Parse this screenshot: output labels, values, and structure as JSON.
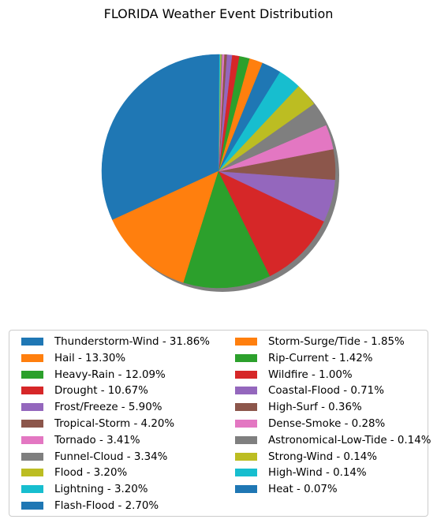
{
  "chart_data": {
    "type": "pie",
    "title": "FLORIDA Weather Event Distribution",
    "shadow": true,
    "legend_position": "bottom",
    "legend_columns": 2,
    "slices": [
      {
        "label": "Thunderstorm-Wind - 31.86%",
        "value": 31.86,
        "color": "#1f77b4"
      },
      {
        "label": "Hail - 13.30%",
        "value": 13.3,
        "color": "#ff7f0e"
      },
      {
        "label": "Heavy-Rain - 12.09%",
        "value": 12.09,
        "color": "#2ca02c"
      },
      {
        "label": "Drought - 10.67%",
        "value": 10.67,
        "color": "#d62728"
      },
      {
        "label": "Frost/Freeze - 5.90%",
        "value": 5.9,
        "color": "#9467bd"
      },
      {
        "label": "Tropical-Storm - 4.20%",
        "value": 4.2,
        "color": "#8c564b"
      },
      {
        "label": "Tornado - 3.41%",
        "value": 3.41,
        "color": "#e377c2"
      },
      {
        "label": "Funnel-Cloud - 3.34%",
        "value": 3.34,
        "color": "#7f7f7f"
      },
      {
        "label": "Flood - 3.20%",
        "value": 3.2,
        "color": "#bcbd22"
      },
      {
        "label": "Lightning - 3.20%",
        "value": 3.2,
        "color": "#17becf"
      },
      {
        "label": "Flash-Flood - 2.70%",
        "value": 2.7,
        "color": "#1f77b4"
      },
      {
        "label": "Storm-Surge/Tide - 1.85%",
        "value": 1.85,
        "color": "#ff7f0e"
      },
      {
        "label": "Rip-Current - 1.42%",
        "value": 1.42,
        "color": "#2ca02c"
      },
      {
        "label": "Wildfire - 1.00%",
        "value": 1.0,
        "color": "#d62728"
      },
      {
        "label": "Coastal-Flood - 0.71%",
        "value": 0.71,
        "color": "#9467bd"
      },
      {
        "label": "High-Surf - 0.36%",
        "value": 0.36,
        "color": "#8c564b"
      },
      {
        "label": "Dense-Smoke - 0.28%",
        "value": 0.28,
        "color": "#e377c2"
      },
      {
        "label": "Astronomical-Low-Tide - 0.14%",
        "value": 0.14,
        "color": "#7f7f7f"
      },
      {
        "label": "Strong-Wind - 0.14%",
        "value": 0.14,
        "color": "#bcbd22"
      },
      {
        "label": "High-Wind - 0.14%",
        "value": 0.14,
        "color": "#17becf"
      },
      {
        "label": "Heat - 0.07%",
        "value": 0.07,
        "color": "#1f77b4"
      }
    ]
  }
}
